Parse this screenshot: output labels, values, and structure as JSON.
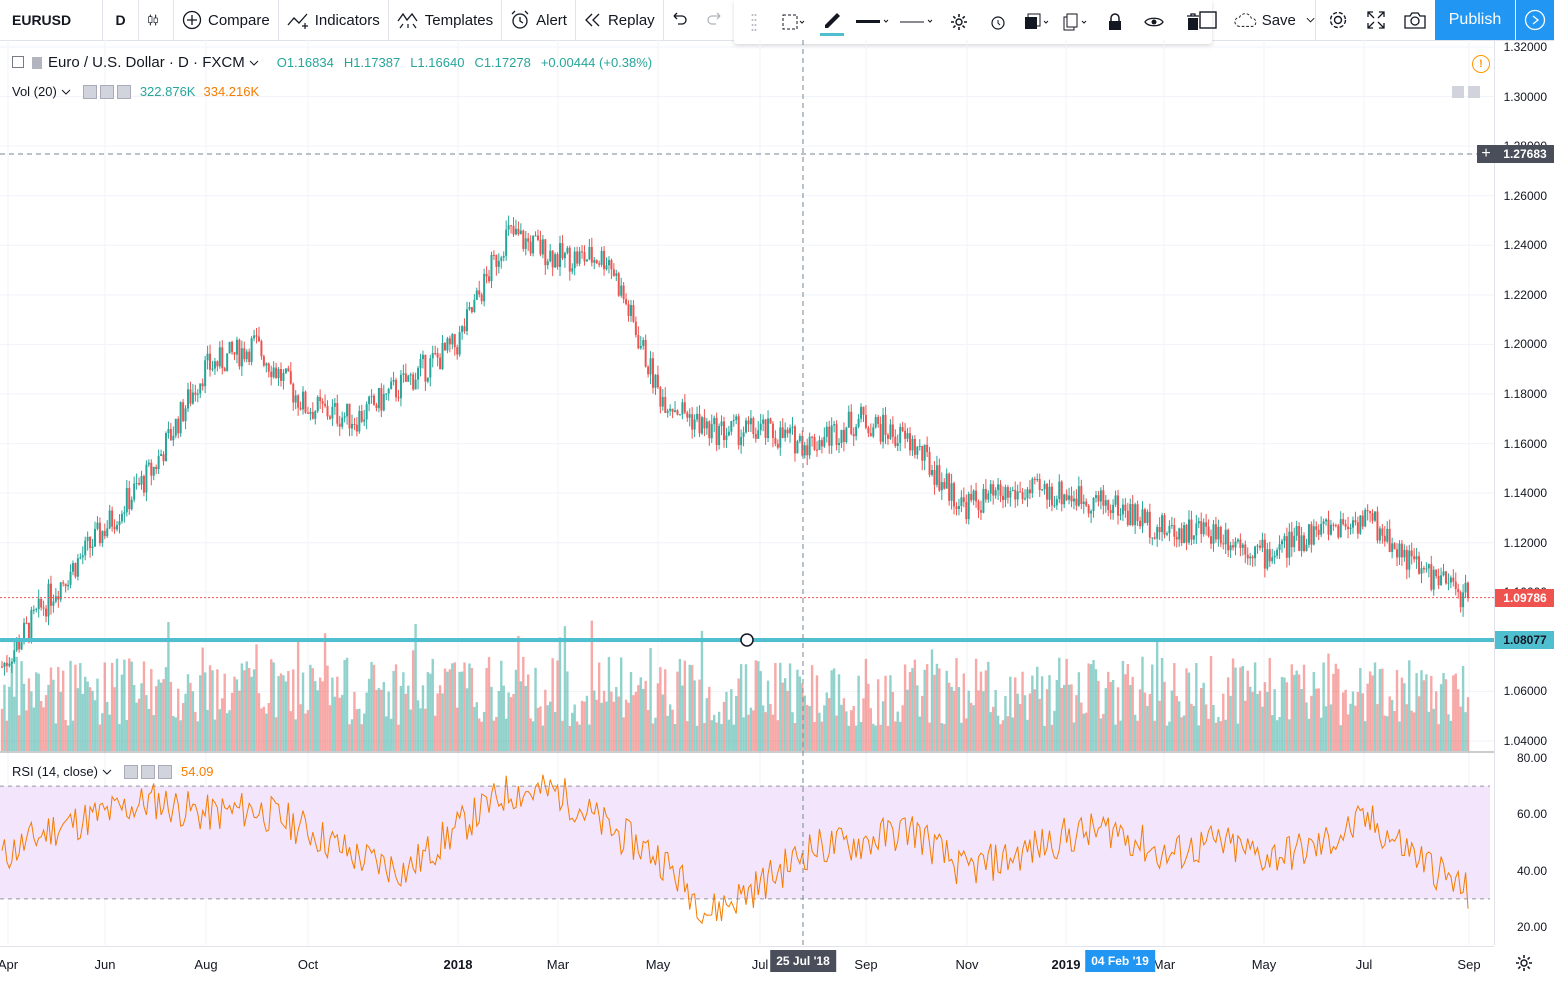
{
  "toolbar": {
    "symbol": "EURUSD",
    "interval": "D",
    "compare": "Compare",
    "indicators": "Indicators",
    "templates": "Templates",
    "alert": "Alert",
    "replay": "Replay",
    "save": "Save",
    "publish": "Publish"
  },
  "legend": {
    "title": "Euro / U.S. Dollar · D · FXCM",
    "open": "O1.16834",
    "high": "H1.17387",
    "low": "L1.16640",
    "close": "C1.17278",
    "change": "+0.00444 (+0.38%)"
  },
  "volume_legend": {
    "label": "Vol (20)",
    "v1": "322.876K",
    "v2": "334.216K"
  },
  "rsi_legend": {
    "label": "RSI (14, close)",
    "value": "54.09"
  },
  "price_axis": {
    "labels": [
      "1.32000",
      "1.30000",
      "1.28000",
      "1.26000",
      "1.24000",
      "1.22000",
      "1.20000",
      "1.18000",
      "1.16000",
      "1.14000",
      "1.12000",
      "1.10000",
      "1.08000",
      "1.06000",
      "1.04000"
    ],
    "crosshair_price": "1.27683",
    "last_price": "1.09786",
    "hline_price": "1.08077"
  },
  "rsi_axis": {
    "labels": [
      "80.00",
      "60.00",
      "40.00",
      "20.00"
    ]
  },
  "time_axis": {
    "labels": [
      "Apr",
      "Jun",
      "Aug",
      "Oct",
      "2018",
      "Mar",
      "May",
      "Jul",
      "Sep",
      "Nov",
      "2019",
      "Mar",
      "May",
      "Jul",
      "Sep"
    ],
    "crosshair_date": "25 Jul '18",
    "selected_date": "04 Feb '19"
  },
  "colors": {
    "up": "#26a69a",
    "down": "#ef5350",
    "rsi_line": "#f57c00",
    "rsi_band": "#f3e5fc",
    "hline": "#4fbfcf",
    "accent": "#2196f3"
  },
  "chart_data": {
    "type": "candlestick",
    "symbol": "EURUSD",
    "interval": "D",
    "x": [
      "2017-04",
      "2017-05",
      "2017-06",
      "2017-07",
      "2017-08",
      "2017-09",
      "2017-10",
      "2017-11",
      "2017-12",
      "2018-01",
      "2018-02",
      "2018-03",
      "2018-04",
      "2018-05",
      "2018-06",
      "2018-07",
      "2018-08",
      "2018-09",
      "2018-10",
      "2018-11",
      "2018-12",
      "2019-01",
      "2019-02",
      "2019-03",
      "2019-04",
      "2019-05",
      "2019-06",
      "2019-07",
      "2019-08",
      "2019-09"
    ],
    "close": [
      1.07,
      1.1,
      1.125,
      1.15,
      1.19,
      1.2,
      1.175,
      1.17,
      1.185,
      1.2,
      1.245,
      1.235,
      1.235,
      1.18,
      1.165,
      1.165,
      1.16,
      1.17,
      1.16,
      1.135,
      1.14,
      1.14,
      1.135,
      1.125,
      1.125,
      1.115,
      1.125,
      1.13,
      1.11,
      1.0979
    ],
    "ylim": [
      1.04,
      1.32
    ],
    "rsi": {
      "values": [
        45,
        55,
        60,
        65,
        60,
        62,
        55,
        45,
        40,
        55,
        68,
        68,
        55,
        45,
        25,
        35,
        48,
        50,
        55,
        40,
        45,
        52,
        55,
        45,
        50,
        45,
        48,
        58,
        45,
        32
      ],
      "ylim": [
        20,
        80
      ],
      "bands": [
        30,
        70
      ]
    }
  }
}
